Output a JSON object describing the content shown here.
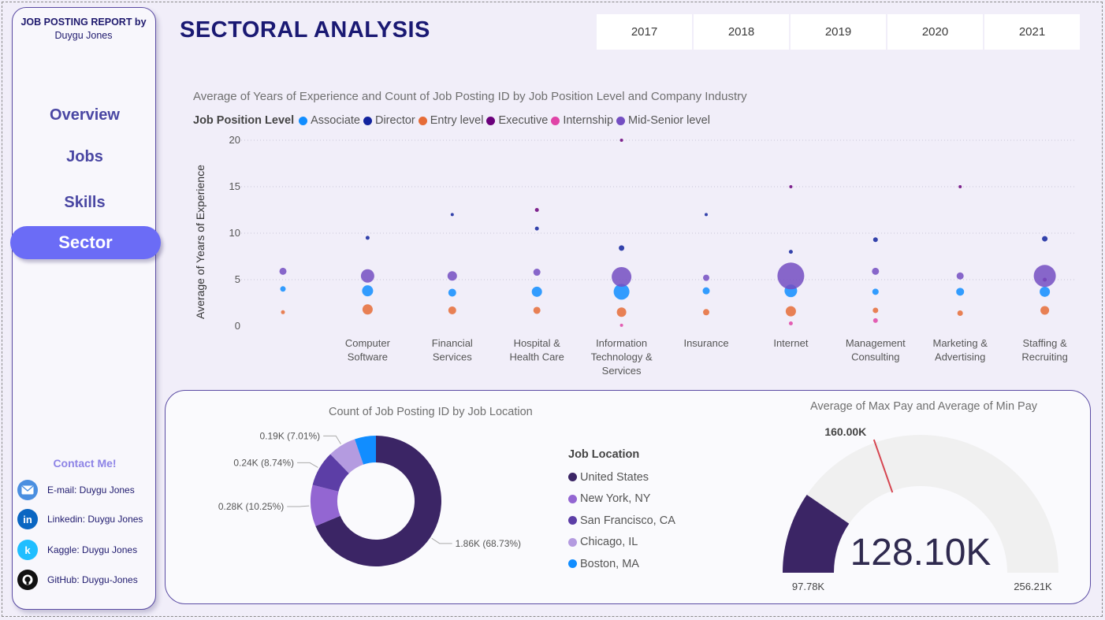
{
  "sidebar": {
    "report_title": "JOB POSTING REPORT by",
    "author": "Duygu Jones",
    "nav": [
      {
        "label": "Overview"
      },
      {
        "label": "Jobs"
      },
      {
        "label": "Skills"
      },
      {
        "label": "Sector",
        "active": true
      }
    ],
    "contact_title": "Contact Me!",
    "contacts": [
      {
        "label": "E-mail: Duygu Jones",
        "icon": "mail-icon",
        "color": "#4a8fe0"
      },
      {
        "label": "Linkedin: Duygu Jones",
        "icon": "linkedin-icon",
        "color": "#0a66c2"
      },
      {
        "label": "Kaggle: Duygu Jones",
        "icon": "kaggle-icon",
        "color": "#20beff"
      },
      {
        "label": "GitHub: Duygu-Jones",
        "icon": "github-icon",
        "color": "#111111"
      }
    ]
  },
  "header": {
    "title": "SECTORAL ANALYSIS",
    "years": [
      "2017",
      "2018",
      "2019",
      "2020",
      "2021"
    ]
  },
  "chart_data": [
    {
      "type": "scatter",
      "title": "Average of Years of Experience and Count of Job Posting ID by Job Position Level and Company Industry",
      "ylabel": "Average of Years of Experience",
      "xlabel": "",
      "ylim": [
        0,
        20
      ],
      "yticks": [
        0,
        5,
        10,
        15,
        20
      ],
      "grid": true,
      "legend_title": "Job Position Level",
      "legend_placement": "top-left",
      "categories": [
        "",
        "Computer Software",
        "Financial Services",
        "Hospital & Health Care",
        "Information Technology & Services",
        "Insurance",
        "Internet",
        "Management Consulting",
        "Marketing & Advertising",
        "Staffing & Recruiting"
      ],
      "series": [
        {
          "name": "Associate",
          "color": "#118dff",
          "values": [
            4.0,
            3.8,
            3.6,
            3.7,
            3.7,
            3.8,
            3.8,
            3.7,
            3.7,
            3.7
          ],
          "sizes": [
            7,
            14,
            10,
            13,
            20,
            9,
            16,
            8,
            10,
            13
          ]
        },
        {
          "name": "Director",
          "color": "#12239e",
          "values": [
            null,
            9.5,
            12.0,
            10.5,
            8.4,
            12.0,
            8.0,
            9.3,
            null,
            9.4
          ],
          "sizes": [
            null,
            5,
            4,
            5,
            7,
            4,
            5,
            6,
            null,
            7
          ]
        },
        {
          "name": "Entry level",
          "color": "#e66c37",
          "values": [
            1.5,
            1.8,
            1.7,
            1.7,
            1.5,
            1.5,
            1.6,
            1.7,
            1.4,
            1.7
          ],
          "sizes": [
            5,
            13,
            10,
            9,
            12,
            8,
            13,
            7,
            7,
            11
          ]
        },
        {
          "name": "Executive",
          "color": "#6b007b",
          "values": [
            null,
            null,
            null,
            12.5,
            20.0,
            null,
            15.0,
            null,
            15.0,
            5.0
          ],
          "sizes": [
            null,
            null,
            null,
            5,
            4,
            null,
            4,
            null,
            4,
            5
          ]
        },
        {
          "name": "Internship",
          "color": "#e044a7",
          "values": [
            null,
            null,
            null,
            null,
            0.1,
            null,
            0.3,
            0.6,
            null,
            null
          ],
          "sizes": [
            null,
            null,
            null,
            null,
            4,
            null,
            5,
            6,
            null,
            null
          ]
        },
        {
          "name": "Mid-Senior level",
          "color": "#744ec2",
          "values": [
            5.9,
            5.4,
            5.4,
            5.8,
            5.3,
            5.2,
            5.4,
            5.9,
            5.4,
            5.4
          ],
          "sizes": [
            9,
            17,
            12,
            9,
            25,
            8,
            34,
            9,
            9,
            28
          ]
        }
      ]
    },
    {
      "type": "pie",
      "title": "Count of Job Posting ID by Job Location",
      "legend_title": "Job Location",
      "labels": [
        "United States",
        "New York, NY",
        "San Francisco, CA",
        "Chicago, IL",
        "Boston, MA"
      ],
      "values": [
        68.73,
        10.25,
        8.74,
        7.01,
        5.27
      ],
      "colors": [
        "#3b2565",
        "#9366d2",
        "#5c3ea6",
        "#b49be0",
        "#118dff"
      ],
      "data_labels": [
        "1.86K (68.73%)",
        "0.28K (10.25%)",
        "0.24K (8.74%)",
        "0.19K (7.01%)",
        ""
      ]
    },
    {
      "type": "gauge",
      "title": "Average of Max Pay and Average of Min Pay",
      "min": 97780,
      "max": 256210,
      "value": 128100,
      "target": 160000,
      "value_label": "128.10K",
      "target_label": "160.00K",
      "min_label": "97.78K",
      "max_label": "256.21K",
      "fill_color": "#3b2565",
      "track_color": "#f0f0f0",
      "target_color": "#d64550"
    }
  ]
}
